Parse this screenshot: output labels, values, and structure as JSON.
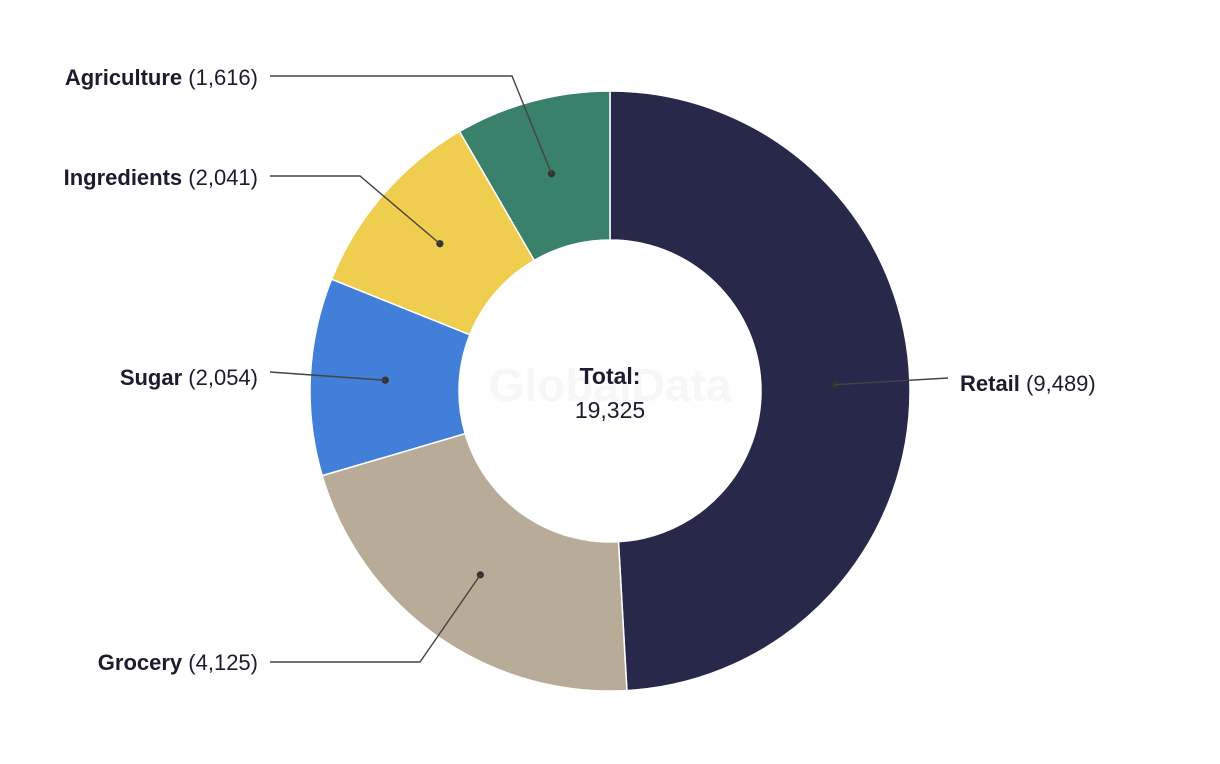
{
  "watermark": "GlobalData",
  "chart_data": {
    "type": "pie",
    "subtype": "donut",
    "center_label": {
      "title": "Total:",
      "value": "19,325"
    },
    "total": 19325,
    "slices": [
      {
        "label": "Retail",
        "value": 9489,
        "value_text": "(9,489)",
        "color": "#28284b"
      },
      {
        "label": "Grocery",
        "value": 4125,
        "value_text": "(4,125)",
        "color": "#b8ac98"
      },
      {
        "label": "Sugar",
        "value": 2054,
        "value_text": "(2,054)",
        "color": "#417fd8"
      },
      {
        "label": "Ingredients",
        "value": 2041,
        "value_text": "(2,041)",
        "color": "#efcd4e"
      },
      {
        "label": "Agriculture",
        "value": 1616,
        "value_text": "(1,616)",
        "color": "#3a816b"
      }
    ]
  }
}
